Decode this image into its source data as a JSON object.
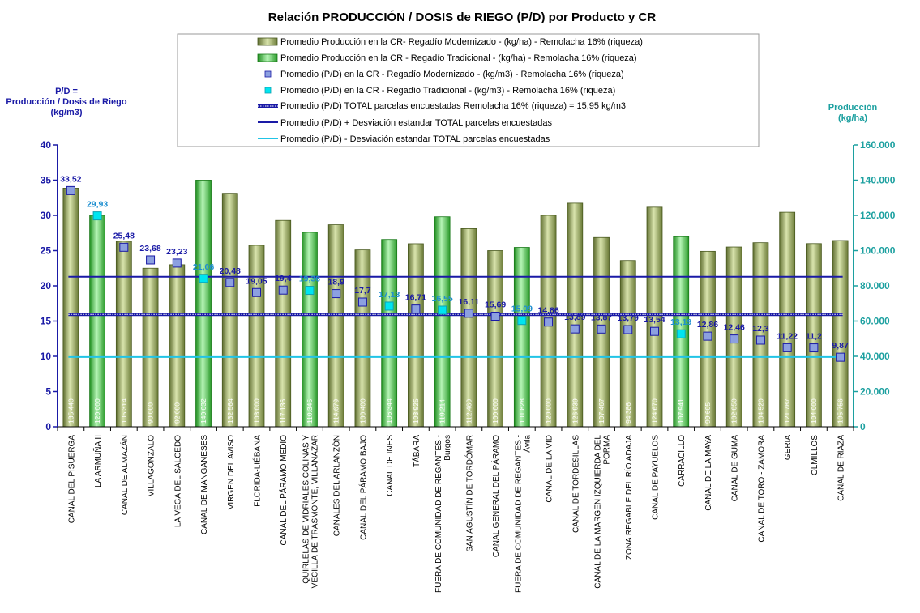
{
  "chart_data": {
    "type": "bar",
    "title": "Relación PRODUCCIÓN / DOSIS de RIEGO (P/D) por Producto y CR",
    "ylabel_left": [
      "P/D =",
      "Producción / Dosis de Riego",
      "(kg/m3)"
    ],
    "ylabel_right": [
      "Producción",
      "(kg/ha)"
    ],
    "ylim_left": [
      0,
      40
    ],
    "ylim_right": [
      0,
      160000
    ],
    "yticks_left": [
      "0",
      "5",
      "10",
      "15",
      "20",
      "25",
      "30",
      "35",
      "40"
    ],
    "yticks_right": [
      "0",
      "20.000",
      "40.000",
      "60.000",
      "80.000",
      "100.000",
      "120.000",
      "140.000",
      "160.000"
    ],
    "categories": [
      "CANAL DEL PISUERGA",
      "LA ARMUÑA II",
      "CANAL DE ALMAZÁN",
      "VILLAGONZALO",
      "LA VEGA DEL SALCEDO",
      "CANAL DE MANGANESES",
      "VIRGEN DEL AVISO",
      "FLORIDA-LIÉBANA",
      "CANAL DEL PÁRAMO MEDIO",
      "QUIRLELAS DE VIDRIALES,COLINAS Y VECILLA DE TRASMONTE, VILLANAZAR",
      "CANALES DEL ARLANZÓN",
      "CANAL DEL PÁRAMO BAJO",
      "CANAL DE INES",
      "TÁBARA",
      "FUERA DE COMUNIDAD DE REGANTES - Burgos",
      "SAN AGUSTÍN DE TORDÓMAR",
      "CANAL GENERAL DEL PÁRAMO",
      "FUERA DE COMUNIDAD DE REGANTES - Ávila",
      "CANAL DE LA VID",
      "CANAL DE TORDESILLAS",
      "CANAL DE LA MARGEN IZQUIERDA DEL PORMA",
      "ZONA REGABLE DEL RÍO ADAJA",
      "CANAL DE PAYUELOS",
      "CARRACILLO",
      "CANAL DE LA MAYA",
      "CANAL DE GUMA",
      "CANAL DE TORO - ZAMORA",
      "GERIA",
      "OLMILLOS",
      "CANAL DE RIAZA"
    ],
    "category_lines": [
      [
        "CANAL DEL PISUERGA"
      ],
      [
        "LA ARMUÑA II"
      ],
      [
        "CANAL DE ALMAZÁN"
      ],
      [
        "VILLAGONZALO"
      ],
      [
        "LA VEGA DEL SALCEDO"
      ],
      [
        "CANAL DE MANGANESES"
      ],
      [
        "VIRGEN DEL AVISO"
      ],
      [
        "FLORIDA-LIÉBANA"
      ],
      [
        "CANAL DEL PÁRAMO MEDIO"
      ],
      [
        "QUIRLELAS DE VIDRIALES,COLINAS Y",
        "VECILLA DE TRASMONTE, VILLANAZAR"
      ],
      [
        "CANALES DEL ARLANZÓN"
      ],
      [
        "CANAL DEL PÁRAMO BAJO"
      ],
      [
        "CANAL DE INES"
      ],
      [
        "TÁBARA"
      ],
      [
        "FUERA DE COMUNIDAD DE REGANTES -",
        "Burgos"
      ],
      [
        "SAN AGUSTÍN DE TORDÓMAR"
      ],
      [
        "CANAL GENERAL DEL PÁRAMO"
      ],
      [
        "FUERA DE COMUNIDAD DE REGANTES -",
        "Ávila"
      ],
      [
        "CANAL DE LA VID"
      ],
      [
        "CANAL DE TORDESILLAS"
      ],
      [
        "CANAL DE LA MARGEN IZQUIERDA DEL",
        "PORMA"
      ],
      [
        "ZONA REGABLE DEL RÍO ADAJA"
      ],
      [
        "CANAL DE PAYUELOS"
      ],
      [
        "CARRACILLO"
      ],
      [
        "CANAL DE LA MAYA"
      ],
      [
        "CANAL DE GUMA"
      ],
      [
        "CANAL DE TORO - ZAMORA"
      ],
      [
        "GERIA"
      ],
      [
        "OLMILLOS"
      ],
      [
        "CANAL DE RIAZA"
      ]
    ],
    "irrigation_type": [
      "M",
      "T",
      "M",
      "M",
      "M",
      "T",
      "M",
      "M",
      "M",
      "T",
      "M",
      "M",
      "T",
      "M",
      "T",
      "M",
      "M",
      "T",
      "M",
      "M",
      "M",
      "M",
      "M",
      "T",
      "M",
      "M",
      "M",
      "M",
      "M",
      "M"
    ],
    "production_kg_ha": [
      135440,
      120000,
      105314,
      90000,
      92000,
      140032,
      132564,
      103000,
      117136,
      110345,
      114679,
      100400,
      106344,
      103925,
      119214,
      112460,
      100000,
      101828,
      120000,
      126939,
      107467,
      94386,
      124670,
      107941,
      99605,
      102050,
      104520,
      121787,
      104000,
      105756
    ],
    "production_labels": [
      "135.440",
      "120.000",
      "105.314",
      "90.000",
      "92.000",
      "140.032",
      "132.564",
      "103.000",
      "117.136",
      "110.345",
      "114.679",
      "100.400",
      "106.344",
      "103.925",
      "119.214",
      "112.460",
      "100.000",
      "101.828",
      "120.000",
      "126.939",
      "107.467",
      "94.386",
      "124.670",
      "107.941",
      "99.605",
      "102.050",
      "104.520",
      "121.787",
      "104.000",
      "105.756"
    ],
    "pd_kg_m3": [
      33.52,
      29.93,
      25.48,
      23.68,
      23.23,
      21.06,
      20.48,
      19.05,
      19.4,
      19.36,
      18.9,
      17.7,
      17.13,
      16.71,
      16.55,
      16.11,
      15.69,
      15.09,
      14.86,
      13.89,
      13.87,
      13.79,
      13.54,
      13.19,
      12.86,
      12.46,
      12.3,
      11.22,
      11.2,
      9.87
    ],
    "pd_labels": [
      "33,52",
      "29,93",
      "25,48",
      "23,68",
      "23,23",
      "21,06",
      "20,48",
      "19,05",
      "19,4",
      "19,36",
      "18,9",
      "17,7",
      "17,13",
      "16,71",
      "16,55",
      "16,11",
      "15,69",
      "15,09",
      "14,86",
      "13,89",
      "13,87",
      "13,79",
      "13,54",
      "13,19",
      "12,86",
      "12,46",
      "12,3",
      "11,22",
      "11,2",
      "9,87"
    ],
    "reference_lines": {
      "mean": 15.95,
      "mean_plus_sd": 21.3,
      "mean_minus_sd": 9.9
    },
    "legend": [
      "Promedio Producción en la CR- Regadío Modernizado -  (kg/ha) - Remolacha 16% (riqueza)",
      "Promedio Producción en la CR - Regadío Tradicional -  (kg/ha) - Remolacha 16% (riqueza)",
      "Promedio (P/D) en la CR - Regadío Modernizado - (kg/m3) - Remolacha 16% (riqueza)",
      "Promedio (P/D) en la CR - Regadío Tradicional - (kg/m3) - Remolacha 16% (riqueza)",
      "Promedio (P/D) TOTAL parcelas encuestadas Remolacha 16% (riqueza) = 15,95 kg/m3",
      "Promedio (P/D) + Desviación estandar TOTAL parcelas encuestadas",
      "Promedio (P/D) - Desviación estandar TOTAL parcelas encuestadas"
    ],
    "legend_placement": "top-center",
    "colors": {
      "bar_modernizado": "#a7b872",
      "bar_tradicional": "#5ecf5e",
      "marker_modernizado": "#8ca0e0",
      "marker_tradicional": "#00e5f0",
      "label_modernizado": "#1a1aa6",
      "label_tradicional": "#1e8fd0",
      "line_mean": "#1a1aa6",
      "line_plus": "#1a1aa6",
      "line_minus": "#21c4e6",
      "axis_left": "#1a1aa6",
      "axis_right": "#1ca0a0"
    }
  }
}
